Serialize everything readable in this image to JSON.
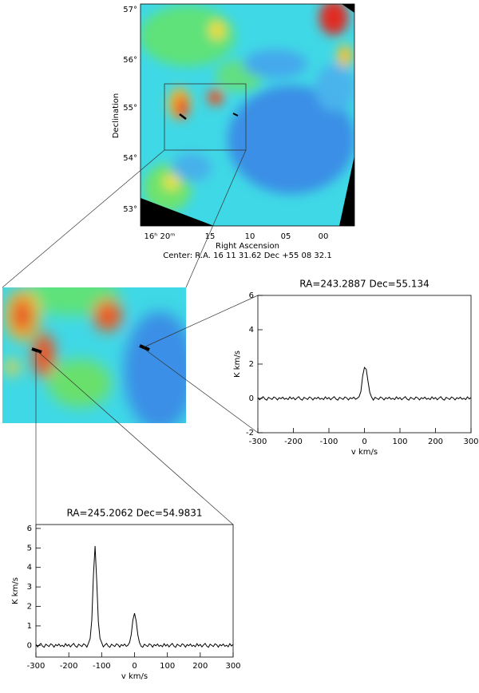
{
  "chart_data": [
    {
      "type": "image",
      "xlabel": "Right Ascension",
      "ylabel": "Declination",
      "note": "Center:  R.A. 16 11 31.62    Dec  +55 08 32.1",
      "xtick_labels": [
        "16ʰ 20ᵐ",
        "15",
        "10",
        "05",
        "00"
      ],
      "ytick_labels": [
        "57°",
        "56°",
        "55°",
        "54°",
        "53°"
      ]
    },
    {
      "type": "line",
      "title": "RA=243.2887   Dec=55.134",
      "xlabel": "v km/s",
      "ylabel": "K km/s",
      "color": "#000000",
      "xlim": [
        -300,
        300
      ],
      "xticks": [
        -300,
        -200,
        -100,
        0,
        100,
        200,
        300
      ],
      "ylim": [
        -2,
        6
      ],
      "yticks": [
        -2,
        0,
        2,
        4,
        6
      ],
      "grid": false,
      "x": [
        -300,
        -295,
        -290,
        -285,
        -280,
        -275,
        -270,
        -265,
        -260,
        -255,
        -250,
        -245,
        -240,
        -235,
        -230,
        -225,
        -220,
        -215,
        -210,
        -205,
        -200,
        -195,
        -190,
        -185,
        -180,
        -175,
        -170,
        -165,
        -160,
        -155,
        -150,
        -145,
        -140,
        -135,
        -130,
        -125,
        -120,
        -115,
        -110,
        -105,
        -100,
        -95,
        -90,
        -85,
        -80,
        -75,
        -70,
        -65,
        -60,
        -55,
        -50,
        -45,
        -40,
        -35,
        -30,
        -25,
        -20,
        -15,
        -10,
        -5,
        0,
        5,
        10,
        15,
        20,
        25,
        30,
        35,
        40,
        45,
        50,
        55,
        60,
        65,
        70,
        75,
        80,
        85,
        90,
        95,
        100,
        105,
        110,
        115,
        120,
        125,
        130,
        135,
        140,
        145,
        150,
        155,
        160,
        165,
        170,
        175,
        180,
        185,
        190,
        195,
        200,
        205,
        210,
        215,
        220,
        225,
        230,
        235,
        240,
        245,
        250,
        255,
        260,
        265,
        270,
        275,
        280,
        285,
        290,
        295,
        300
      ],
      "values": [
        0.05,
        -0.08,
        0.02,
        0.1,
        -0.04,
        -0.1,
        0.06,
        0.0,
        -0.06,
        0.08,
        0.03,
        -0.09,
        0.04,
        -0.02,
        0.07,
        -0.05,
        0.01,
        -0.07,
        0.09,
        -0.03,
        0.05,
        -0.08,
        0.02,
        0.1,
        -0.04,
        -0.1,
        0.06,
        0.0,
        -0.06,
        0.08,
        0.03,
        -0.09,
        0.04,
        -0.02,
        0.07,
        -0.05,
        0.01,
        -0.07,
        0.09,
        -0.03,
        0.05,
        -0.08,
        0.02,
        0.1,
        -0.04,
        -0.1,
        0.06,
        0.0,
        -0.06,
        0.08,
        0.03,
        -0.09,
        0.04,
        -0.02,
        0.07,
        -0.05,
        0.01,
        0.1,
        0.4,
        1.3,
        1.8,
        1.7,
        1.0,
        0.35,
        0.08,
        -0.1,
        0.06,
        0.0,
        -0.06,
        0.08,
        0.03,
        -0.09,
        0.04,
        -0.02,
        0.07,
        -0.05,
        0.01,
        -0.07,
        0.09,
        -0.03,
        0.05,
        -0.08,
        0.02,
        0.1,
        -0.04,
        -0.1,
        0.06,
        0.0,
        -0.06,
        0.08,
        0.03,
        -0.09,
        0.04,
        -0.02,
        0.07,
        -0.05,
        0.01,
        -0.07,
        0.09,
        -0.03,
        0.05,
        -0.08,
        0.02,
        0.1,
        -0.04,
        -0.1,
        0.06,
        0.0,
        -0.06,
        0.08,
        0.03,
        -0.09,
        0.04,
        -0.02,
        0.07,
        -0.05,
        0.01,
        -0.07,
        0.09,
        -0.03,
        0.05
      ]
    },
    {
      "type": "line",
      "title": "RA=245.2062   Dec=54.9831",
      "xlabel": "v km/s",
      "ylabel": "K km/s",
      "color": "#000000",
      "xlim": [
        -300,
        300
      ],
      "xticks": [
        -300,
        -200,
        -100,
        0,
        100,
        200,
        300
      ],
      "ylim": [
        -0.6,
        6.2
      ],
      "yticks": [
        0,
        1,
        2,
        3,
        4,
        5,
        6
      ],
      "grid": false,
      "x": [
        -300,
        -295,
        -290,
        -285,
        -280,
        -275,
        -270,
        -265,
        -260,
        -255,
        -250,
        -245,
        -240,
        -235,
        -230,
        -225,
        -220,
        -215,
        -210,
        -205,
        -200,
        -195,
        -190,
        -185,
        -180,
        -175,
        -170,
        -165,
        -160,
        -155,
        -150,
        -145,
        -140,
        -135,
        -130,
        -125,
        -120,
        -115,
        -110,
        -105,
        -100,
        -95,
        -90,
        -85,
        -80,
        -75,
        -70,
        -65,
        -60,
        -55,
        -50,
        -45,
        -40,
        -35,
        -30,
        -25,
        -20,
        -15,
        -10,
        -5,
        0,
        5,
        10,
        15,
        20,
        25,
        30,
        35,
        40,
        45,
        50,
        55,
        60,
        65,
        70,
        75,
        80,
        85,
        90,
        95,
        100,
        105,
        110,
        115,
        120,
        125,
        130,
        135,
        140,
        145,
        150,
        155,
        160,
        165,
        170,
        175,
        180,
        185,
        190,
        195,
        200,
        205,
        210,
        215,
        220,
        225,
        230,
        235,
        240,
        245,
        250,
        255,
        260,
        265,
        270,
        275,
        280,
        285,
        290,
        295,
        300
      ],
      "values": [
        0.05,
        -0.08,
        0.02,
        0.1,
        -0.04,
        -0.1,
        0.06,
        0.0,
        -0.06,
        0.08,
        0.03,
        -0.09,
        0.04,
        -0.02,
        0.07,
        -0.05,
        0.01,
        -0.07,
        0.09,
        -0.03,
        0.05,
        -0.08,
        0.02,
        0.1,
        -0.04,
        -0.1,
        0.06,
        0.0,
        -0.06,
        0.08,
        0.03,
        -0.09,
        0.12,
        0.35,
        1.3,
        3.6,
        5.1,
        3.3,
        1.2,
        0.35,
        0.15,
        -0.08,
        0.02,
        0.1,
        -0.04,
        -0.1,
        0.06,
        0.0,
        -0.06,
        0.08,
        0.03,
        -0.09,
        0.04,
        -0.02,
        0.07,
        -0.05,
        0.01,
        0.15,
        0.55,
        1.3,
        1.65,
        1.25,
        0.55,
        0.15,
        -0.04,
        -0.1,
        0.06,
        0.0,
        -0.06,
        0.08,
        0.03,
        -0.09,
        0.04,
        -0.02,
        0.07,
        -0.05,
        0.01,
        -0.07,
        0.09,
        -0.03,
        0.05,
        -0.08,
        0.02,
        0.1,
        -0.04,
        -0.1,
        0.06,
        0.0,
        -0.06,
        0.08,
        0.03,
        -0.09,
        0.04,
        -0.02,
        0.07,
        -0.05,
        0.01,
        -0.07,
        0.09,
        -0.03,
        0.05,
        -0.08,
        0.02,
        0.1,
        -0.04,
        -0.1,
        0.06,
        0.0,
        -0.06,
        0.08,
        0.03,
        -0.09,
        0.04,
        -0.02,
        0.07,
        -0.05,
        0.01,
        -0.07,
        0.09,
        -0.03,
        0.05
      ]
    }
  ]
}
